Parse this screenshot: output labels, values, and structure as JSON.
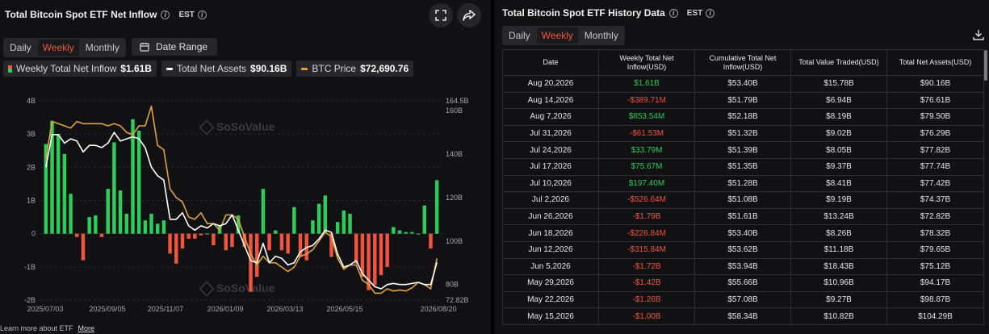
{
  "left_panel": {
    "title": "Total Bitcoin Spot ETF Net Inflow",
    "timezone": "EST",
    "tabs": [
      {
        "label": "Daily",
        "active": false
      },
      {
        "label": "Weekly",
        "active": true
      },
      {
        "label": "Monthly",
        "active": false
      }
    ],
    "date_range_label": "Date Range",
    "legend": [
      {
        "label": "Weekly Total Net Inflow",
        "value": "$1.61B"
      },
      {
        "label": "Total Net Assets",
        "value": "$90.16B"
      },
      {
        "label": "BTC Price",
        "value": "$72,690.76"
      }
    ],
    "watermark": "SoSoValue",
    "footer_text": "Learn more about ETF",
    "footer_link": "More"
  },
  "colors": {
    "positive": "#2ecc58",
    "negative": "#f2553d",
    "assets_line": "#ffffff",
    "btc_line": "#e0a33a",
    "accent": "#f2553d"
  },
  "icons": {
    "fullscreen": "expand-icon",
    "share": "share-icon",
    "calendar": "calendar-icon",
    "download": "download-icon"
  },
  "chart_data": {
    "type": "bar",
    "x_tick_labels": [
      "2025/07/03",
      "2025/09/05",
      "2025/11/07",
      "2026/01/09",
      "2026/03/13",
      "2026/05/15",
      "2026/08/20"
    ],
    "y_left_ticks": [
      "4B",
      "3B",
      "2B",
      "1B",
      "0",
      "-1B",
      "-2B"
    ],
    "y_left_range": [
      -2,
      4
    ],
    "y_right_ticks": [
      "164.5B",
      "160B",
      "140B",
      "120B",
      "100B",
      "80B",
      "72.82B"
    ],
    "y_right_range": [
      72.82,
      164.5
    ],
    "series": [
      {
        "name": "Weekly Total Net Inflow",
        "unit": "B",
        "values": [
          2.7,
          3.4,
          3.0,
          2.4,
          1.2,
          -0.1,
          -0.8,
          0.5,
          0.55,
          -0.1,
          1.35,
          2.75,
          1.3,
          0.6,
          3.45,
          3.1,
          0.4,
          0.6,
          0.3,
          0.4,
          -0.6,
          -0.9,
          -0.45,
          -0.15,
          -0.15,
          -0.05,
          0.0,
          -0.35,
          0.25,
          -0.5,
          -0.4,
          0.55,
          -0.4,
          -1.75,
          -1.3,
          1.35,
          -0.5,
          0.1,
          -0.5,
          -0.6,
          0.8,
          -0.7,
          -0.8,
          0.4,
          0.9,
          1.15,
          -0.7,
          0.35,
          0.7,
          0.6,
          -0.9,
          -1.3,
          -1.7,
          -1.55,
          -1.25,
          -1.0,
          0.2,
          0.1,
          0.05,
          0.05,
          0.0,
          0.85,
          -0.45,
          1.61
        ]
      },
      {
        "name": "Total Net Assets",
        "unit": "B",
        "values": [
          134,
          149,
          149,
          145,
          147,
          146,
          141,
          144,
          144,
          143,
          145,
          150,
          146,
          147,
          148,
          147,
          143,
          134,
          130,
          128,
          110,
          110,
          113,
          107,
          105,
          107,
          106,
          108,
          107,
          108,
          112,
          105,
          98,
          91,
          90,
          99,
          90,
          93,
          92,
          89,
          90,
          95,
          97,
          98,
          101,
          105,
          104,
          94,
          88,
          89,
          91,
          85,
          82,
          79,
          78,
          80,
          80.5,
          80,
          80,
          80.5,
          81,
          80,
          80,
          90.16
        ]
      },
      {
        "name": "BTC Price",
        "unit": "B (right axis scale)",
        "values": [
          138,
          155,
          154,
          153,
          152,
          155,
          154,
          154,
          154,
          154,
          153,
          154,
          153,
          150,
          149,
          153,
          153,
          162,
          144,
          142,
          124,
          120,
          118,
          111,
          110,
          113,
          108,
          108,
          105,
          112,
          112,
          110,
          102,
          94,
          89,
          93,
          90,
          90,
          88,
          86,
          88,
          93,
          94,
          96,
          100,
          104,
          102,
          92,
          87,
          89,
          89,
          82,
          80,
          76,
          76,
          78,
          77,
          77.5,
          77,
          78.5,
          81,
          80,
          78,
          92
        ]
      }
    ],
    "grid": "horizontal",
    "legend_position": "top-left"
  },
  "right_panel": {
    "title": "Total Bitcoin Spot ETF History Data",
    "timezone": "EST",
    "tabs": [
      {
        "label": "Daily",
        "active": false
      },
      {
        "label": "Weekly",
        "active": true
      },
      {
        "label": "Monthly",
        "active": false
      }
    ],
    "table": {
      "headers": [
        "Date",
        "Weekly Total Net Inflow(USD)",
        "Cumulative Total Net Inflow(USD)",
        "Total Value Traded(USD)",
        "Total Net Assets(USD)"
      ],
      "rows": [
        {
          "date": "Aug 20,2026",
          "inflow": "$1.61B",
          "sign": "pos",
          "cumulative": "$53.40B",
          "traded": "$15.78B",
          "assets": "$90.16B"
        },
        {
          "date": "Aug 14,2026",
          "inflow": "-$389.71M",
          "sign": "neg",
          "cumulative": "$51.79B",
          "traded": "$6.94B",
          "assets": "$76.61B"
        },
        {
          "date": "Aug 7,2026",
          "inflow": "$853.54M",
          "sign": "pos",
          "cumulative": "$52.18B",
          "traded": "$8.19B",
          "assets": "$79.50B"
        },
        {
          "date": "Jul 31,2026",
          "inflow": "-$61.53M",
          "sign": "neg",
          "cumulative": "$51.32B",
          "traded": "$9.02B",
          "assets": "$76.29B"
        },
        {
          "date": "Jul 24,2026",
          "inflow": "$33.79M",
          "sign": "pos",
          "cumulative": "$51.39B",
          "traded": "$8.05B",
          "assets": "$77.82B"
        },
        {
          "date": "Jul 17,2026",
          "inflow": "$75.67M",
          "sign": "pos",
          "cumulative": "$51.35B",
          "traded": "$9.37B",
          "assets": "$77.74B"
        },
        {
          "date": "Jul 10,2026",
          "inflow": "$197.40M",
          "sign": "pos",
          "cumulative": "$51.28B",
          "traded": "$8.41B",
          "assets": "$77.42B"
        },
        {
          "date": "Jul 2,2026",
          "inflow": "-$526.64M",
          "sign": "neg",
          "cumulative": "$51.08B",
          "traded": "$9.19B",
          "assets": "$74.37B"
        },
        {
          "date": "Jun 26,2026",
          "inflow": "-$1.79B",
          "sign": "neg",
          "cumulative": "$51.61B",
          "traded": "$13.24B",
          "assets": "$72.82B"
        },
        {
          "date": "Jun 18,2026",
          "inflow": "-$226.84M",
          "sign": "neg",
          "cumulative": "$53.40B",
          "traded": "$8.26B",
          "assets": "$78.32B"
        },
        {
          "date": "Jun 12,2026",
          "inflow": "-$315.84M",
          "sign": "neg",
          "cumulative": "$53.62B",
          "traded": "$11.18B",
          "assets": "$79.65B"
        },
        {
          "date": "Jun 5,2026",
          "inflow": "-$1.72B",
          "sign": "neg",
          "cumulative": "$53.94B",
          "traded": "$18.43B",
          "assets": "$75.12B"
        },
        {
          "date": "May 29,2026",
          "inflow": "-$1.42B",
          "sign": "neg",
          "cumulative": "$55.66B",
          "traded": "$10.96B",
          "assets": "$94.17B"
        },
        {
          "date": "May 22,2026",
          "inflow": "-$1.26B",
          "sign": "neg",
          "cumulative": "$57.08B",
          "traded": "$9.27B",
          "assets": "$98.87B"
        },
        {
          "date": "May 15,2026",
          "inflow": "-$1.00B",
          "sign": "neg",
          "cumulative": "$58.34B",
          "traded": "$10.82B",
          "assets": "$104.29B"
        }
      ]
    }
  }
}
